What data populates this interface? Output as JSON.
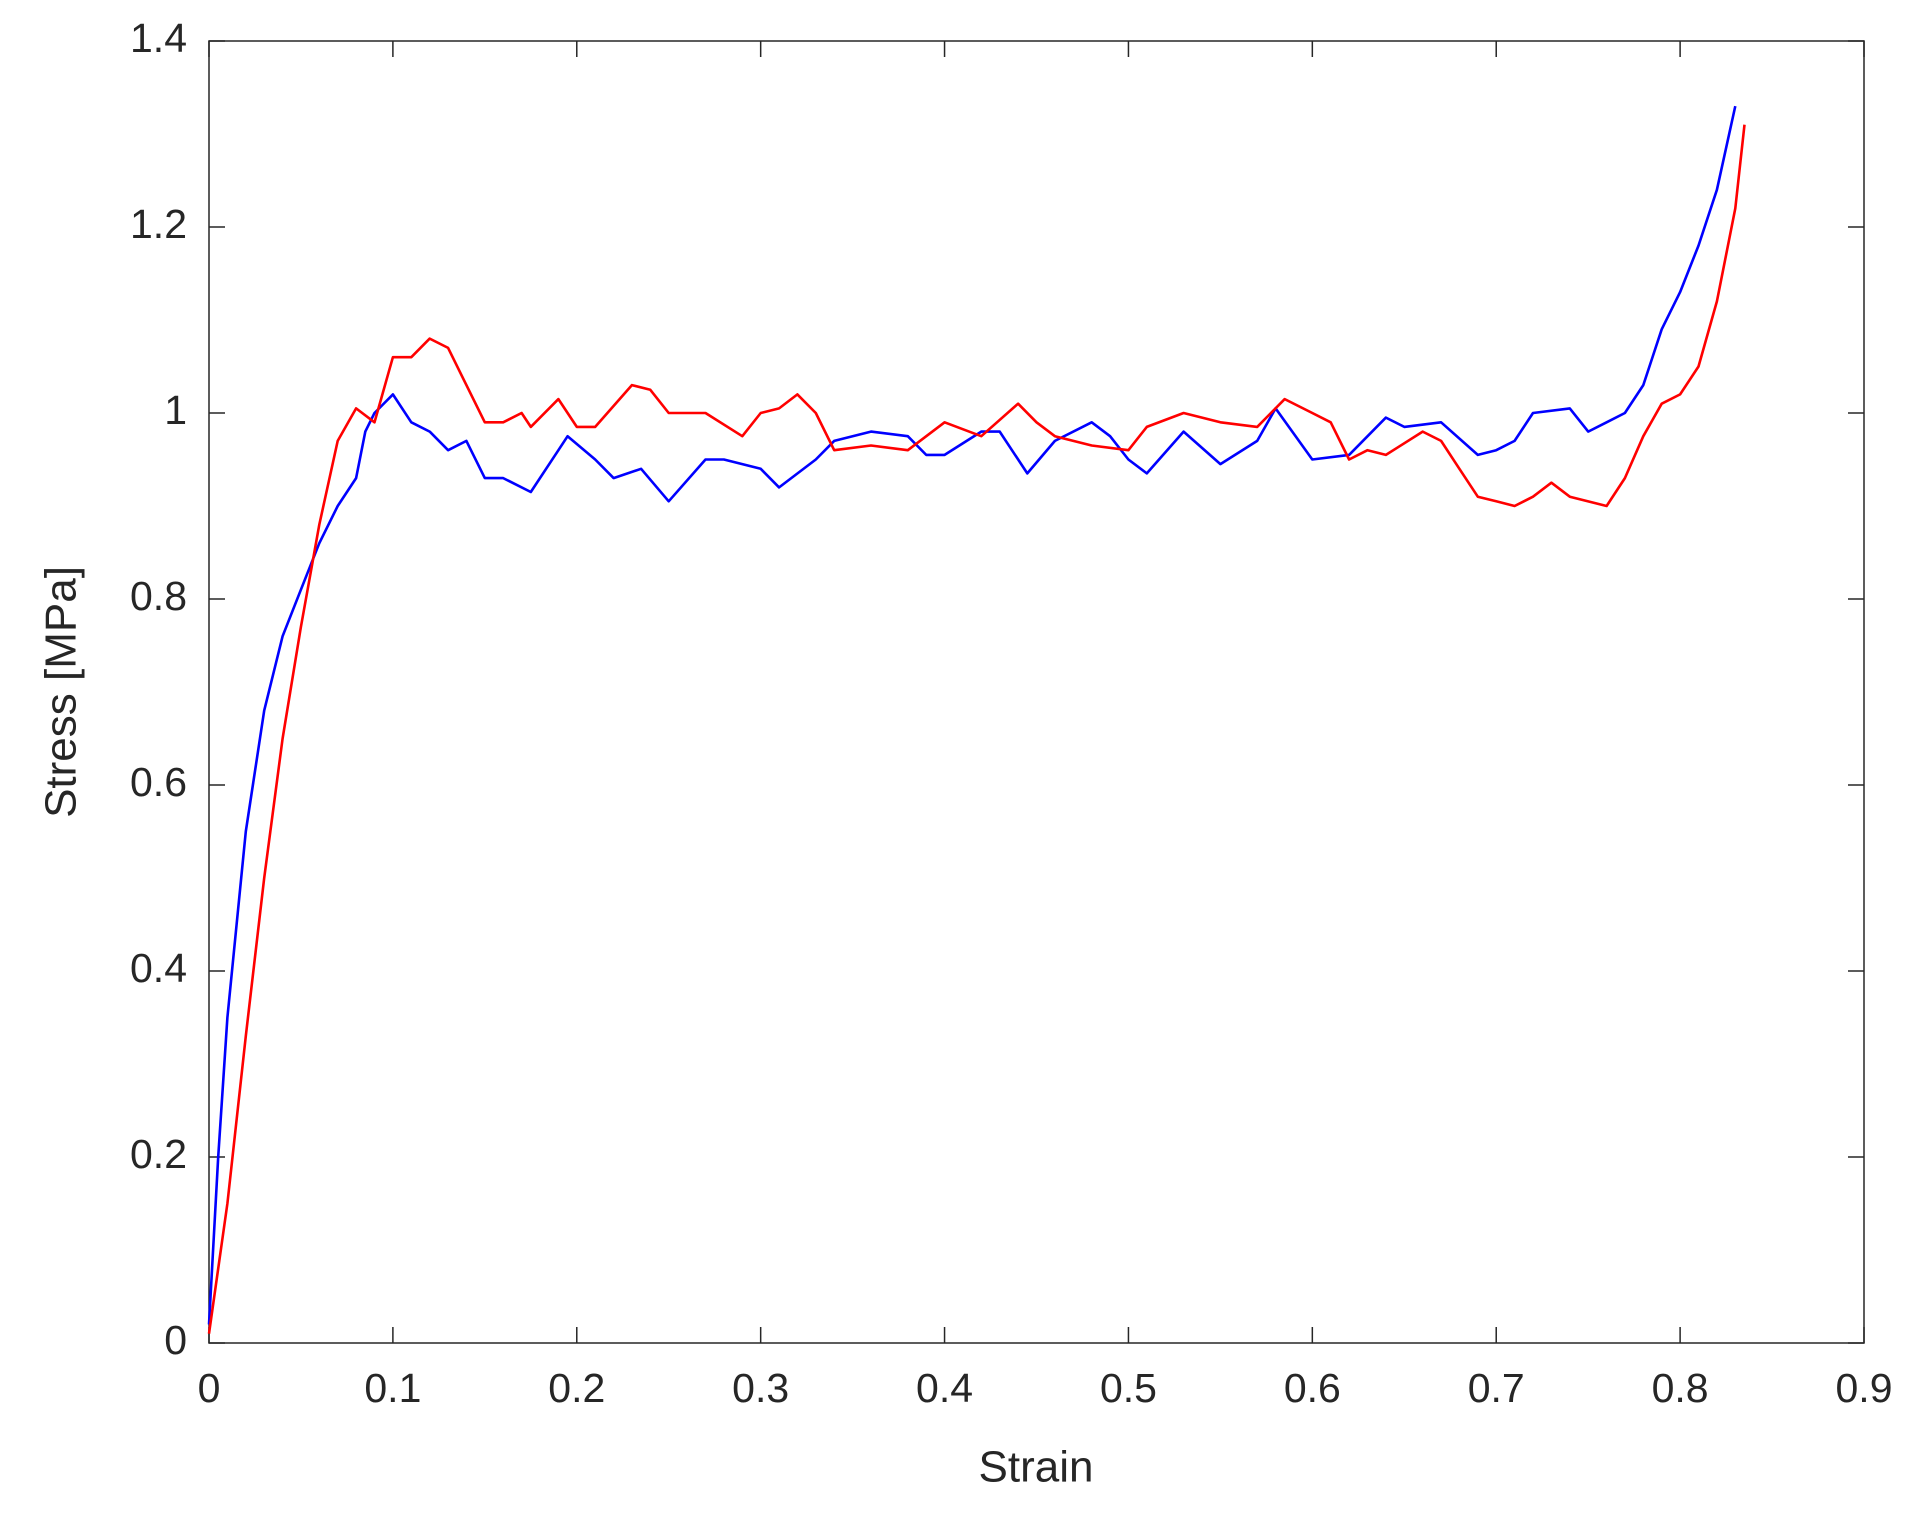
{
  "chart_data": {
    "type": "line",
    "xlabel": "Strain",
    "ylabel": "Stress [MPa]",
    "xlim": [
      0,
      0.9
    ],
    "xticks": [
      0,
      0.1,
      0.2,
      0.3,
      0.4,
      0.5,
      0.6,
      0.7,
      0.8,
      0.9
    ],
    "ylim": [
      0,
      1.4
    ],
    "yticks": [
      0,
      0.2,
      0.4,
      0.6,
      0.8,
      1,
      1.2,
      1.4
    ],
    "grid": false,
    "series": [
      {
        "color": "#0000ff",
        "x": [
          0,
          0.005,
          0.01,
          0.02,
          0.03,
          0.04,
          0.05,
          0.06,
          0.07,
          0.08,
          0.085,
          0.09,
          0.1,
          0.11,
          0.12,
          0.13,
          0.14,
          0.15,
          0.16,
          0.175,
          0.19,
          0.195,
          0.21,
          0.22,
          0.235,
          0.25,
          0.27,
          0.28,
          0.3,
          0.31,
          0.33,
          0.34,
          0.36,
          0.38,
          0.39,
          0.4,
          0.42,
          0.43,
          0.445,
          0.46,
          0.48,
          0.49,
          0.5,
          0.51,
          0.53,
          0.55,
          0.57,
          0.58,
          0.6,
          0.62,
          0.64,
          0.65,
          0.67,
          0.69,
          0.7,
          0.71,
          0.72,
          0.74,
          0.75,
          0.76,
          0.77,
          0.78,
          0.79,
          0.8,
          0.81,
          0.82,
          0.83
        ],
        "values": [
          0.02,
          0.2,
          0.35,
          0.55,
          0.68,
          0.76,
          0.81,
          0.86,
          0.9,
          0.93,
          0.98,
          1.0,
          1.02,
          0.99,
          0.98,
          0.96,
          0.97,
          0.93,
          0.93,
          0.915,
          0.96,
          0.975,
          0.95,
          0.93,
          0.94,
          0.905,
          0.95,
          0.95,
          0.94,
          0.92,
          0.95,
          0.97,
          0.98,
          0.975,
          0.955,
          0.955,
          0.98,
          0.98,
          0.935,
          0.97,
          0.99,
          0.975,
          0.95,
          0.935,
          0.98,
          0.945,
          0.97,
          1.005,
          0.95,
          0.955,
          0.995,
          0.985,
          0.99,
          0.955,
          0.96,
          0.97,
          1.0,
          1.005,
          0.98,
          0.99,
          1.0,
          1.03,
          1.09,
          1.13,
          1.18,
          1.24,
          1.33
        ]
      },
      {
        "color": "#ff0000",
        "x": [
          0,
          0.01,
          0.02,
          0.03,
          0.04,
          0.05,
          0.06,
          0.07,
          0.08,
          0.09,
          0.1,
          0.11,
          0.12,
          0.13,
          0.14,
          0.15,
          0.16,
          0.17,
          0.175,
          0.19,
          0.2,
          0.21,
          0.23,
          0.24,
          0.25,
          0.27,
          0.29,
          0.3,
          0.31,
          0.32,
          0.33,
          0.34,
          0.36,
          0.38,
          0.4,
          0.42,
          0.44,
          0.45,
          0.46,
          0.48,
          0.5,
          0.51,
          0.53,
          0.55,
          0.57,
          0.585,
          0.6,
          0.61,
          0.62,
          0.63,
          0.64,
          0.66,
          0.67,
          0.68,
          0.69,
          0.7,
          0.71,
          0.72,
          0.73,
          0.74,
          0.76,
          0.77,
          0.78,
          0.79,
          0.8,
          0.81,
          0.82,
          0.83,
          0.835
        ],
        "values": [
          0.01,
          0.15,
          0.33,
          0.5,
          0.65,
          0.77,
          0.88,
          0.97,
          1.005,
          0.99,
          1.06,
          1.06,
          1.08,
          1.07,
          1.03,
          0.99,
          0.99,
          1.0,
          0.985,
          1.015,
          0.985,
          0.985,
          1.03,
          1.025,
          1.0,
          1.0,
          0.975,
          1.0,
          1.005,
          1.02,
          1.0,
          0.96,
          0.965,
          0.96,
          0.99,
          0.975,
          1.01,
          0.99,
          0.975,
          0.965,
          0.96,
          0.985,
          1.0,
          0.99,
          0.985,
          1.015,
          1.0,
          0.99,
          0.95,
          0.96,
          0.955,
          0.98,
          0.97,
          0.94,
          0.91,
          0.905,
          0.9,
          0.91,
          0.925,
          0.91,
          0.9,
          0.93,
          0.975,
          1.01,
          1.02,
          1.05,
          1.12,
          1.22,
          1.31
        ]
      }
    ]
  }
}
